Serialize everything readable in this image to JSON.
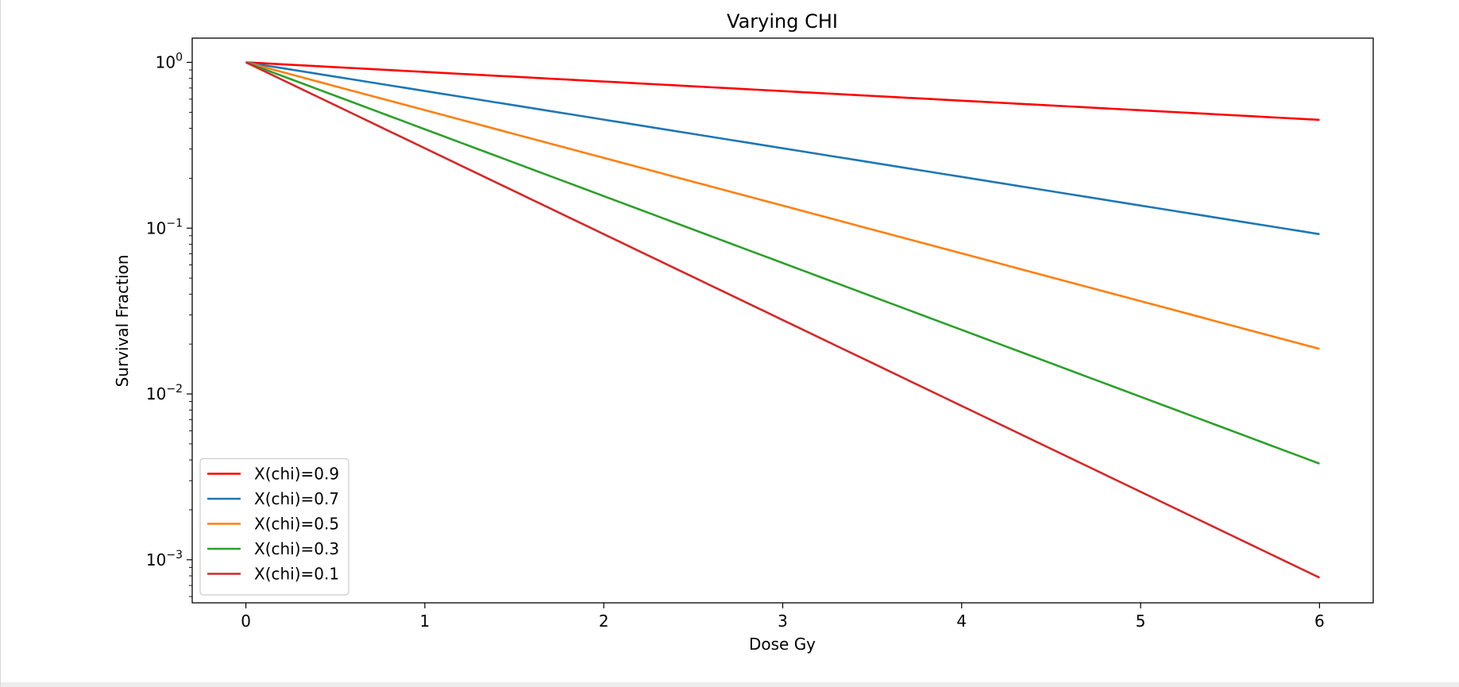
{
  "chart_data": {
    "type": "line",
    "title": "Varying CHI",
    "xlabel": "Dose Gy",
    "ylabel": "Survival Fraction",
    "xlim": [
      -0.3,
      6.3
    ],
    "ylim": [
      0.00055,
      1.4
    ],
    "yscale": "log",
    "grid": false,
    "legend_position": "lower-left",
    "x_ticks": [
      0,
      1,
      2,
      3,
      4,
      5,
      6
    ],
    "y_ticks": [
      {
        "value": 1,
        "base": "10",
        "exp": "0"
      },
      {
        "value": 0.1,
        "base": "10",
        "exp": "−1"
      },
      {
        "value": 0.01,
        "base": "10",
        "exp": "−2"
      },
      {
        "value": 0.001,
        "base": "10",
        "exp": "−3"
      }
    ],
    "series": [
      {
        "name": "X(chi)=0.9",
        "color": "#ff0000",
        "x": [
          0,
          6
        ],
        "y": [
          1.0,
          0.45
        ]
      },
      {
        "name": "X(chi)=0.7",
        "color": "#1f77b4",
        "x": [
          0,
          6
        ],
        "y": [
          1.0,
          0.092
        ]
      },
      {
        "name": "X(chi)=0.5",
        "color": "#ff7f0e",
        "x": [
          0,
          6
        ],
        "y": [
          1.0,
          0.0187
        ]
      },
      {
        "name": "X(chi)=0.3",
        "color": "#2ca02c",
        "x": [
          0,
          6
        ],
        "y": [
          1.0,
          0.0038
        ]
      },
      {
        "name": "X(chi)=0.1",
        "color": "#d62728",
        "x": [
          0,
          6
        ],
        "y": [
          1.0,
          0.00078
        ]
      }
    ]
  }
}
